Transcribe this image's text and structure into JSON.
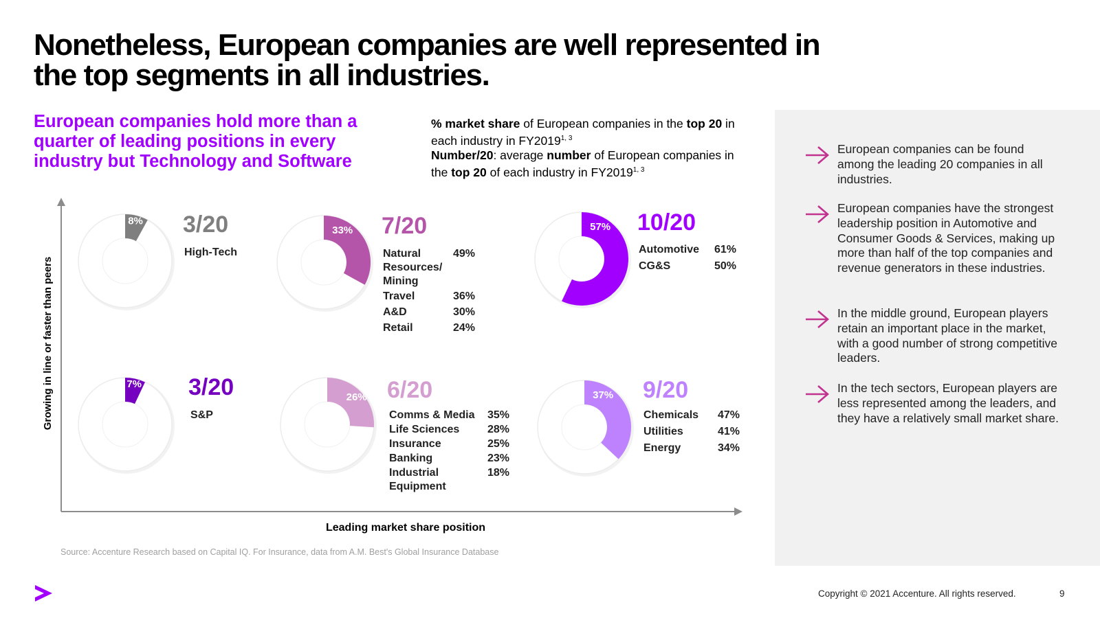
{
  "title": "Nonetheless, European companies are well represented in the top segments in all industries.",
  "subtitle": "European companies hold more than a quarter of leading positions in every industry but Technology and Software",
  "legend_note": {
    "line1_bold1": "% market share",
    "line1_text1": " of European companies in the ",
    "line1_bold2": "top 20",
    "line1_text2": " in each industry in FY2019",
    "line1_sup": "1, 3",
    "line2_bold1": "Number/20",
    "line2_text1": ": average ",
    "line2_bold2": "number",
    "line2_text2": " of European companies in the ",
    "line2_bold3": "top 20",
    "line2_text3": " of each industry in FY2019",
    "line2_sup": "1, 3"
  },
  "bullets": [
    {
      "text": "European companies can be found among the leading 20 companies in all industries.",
      "icon": "arrow-right-icon"
    },
    {
      "text": "European companies have the strongest leadership position in Automotive and Consumer Goods & Services, making up more than half of the top companies and revenue generators in these industries.",
      "icon": "arrow-right-icon"
    },
    {
      "text": "In the middle ground, European players retain  an important place in the market, with a good number of strong competitive leaders.",
      "icon": "arrow-right-icon"
    },
    {
      "text": "In the tech sectors, European players are less represented among the leaders, and they have a relatively small market share.",
      "icon": "arrow-right-icon"
    }
  ],
  "chart_data": {
    "type": "pie",
    "title": "% market share of European companies in the top 20 in each industry in FY2019",
    "xlabel": "Leading market share position",
    "ylabel": "Growing in line or faster than peers",
    "groups": [
      {
        "ratio": "3/20",
        "pct": 8,
        "pct_label": "8%",
        "color": "#7f7f7f",
        "industries": [
          {
            "name": "High-Tech",
            "value": ""
          }
        ]
      },
      {
        "ratio": "7/20",
        "pct": 33,
        "pct_label": "33%",
        "color": "#b455aa",
        "industries": [
          {
            "name": "Natural Resources/ Mining",
            "value": "49%"
          },
          {
            "name": "Travel",
            "value": "36%"
          },
          {
            "name": "A&D",
            "value": "30%"
          },
          {
            "name": "Retail",
            "value": "24%"
          }
        ]
      },
      {
        "ratio": "10/20",
        "pct": 57,
        "pct_label": "57%",
        "color": "#a100ff",
        "industries": [
          {
            "name": "Automotive",
            "value": "61%"
          },
          {
            "name": "CG&S",
            "value": "50%"
          }
        ]
      },
      {
        "ratio": "3/20",
        "pct": 7,
        "pct_label": "7%",
        "color": "#7500c0",
        "industries": [
          {
            "name": "S&P",
            "value": ""
          }
        ]
      },
      {
        "ratio": "6/20",
        "pct": 26,
        "pct_label": "26%",
        "color": "#d49ed0",
        "industries": [
          {
            "name": "Comms & Media",
            "value": "35%"
          },
          {
            "name": "Life Sciences",
            "value": "28%"
          },
          {
            "name": "Insurance",
            "value": "25%"
          },
          {
            "name": "Banking",
            "value": "23%"
          },
          {
            "name": "Industrial Equipment",
            "value": "18%"
          }
        ]
      },
      {
        "ratio": "9/20",
        "pct": 37,
        "pct_label": "37%",
        "color": "#be82ff",
        "industries": [
          {
            "name": "Chemicals",
            "value": "47%"
          },
          {
            "name": "Utilities",
            "value": "41%"
          },
          {
            "name": "Energy",
            "value": "34%"
          }
        ]
      }
    ]
  },
  "source": "Source: Accenture Research based on Capital IQ. For Insurance, data from A.M. Best's Global Insurance Database",
  "footer": {
    "copyright": "Copyright © 2021 Accenture. All rights reserved.",
    "page": "9",
    "brand_color": "#a100ff"
  }
}
